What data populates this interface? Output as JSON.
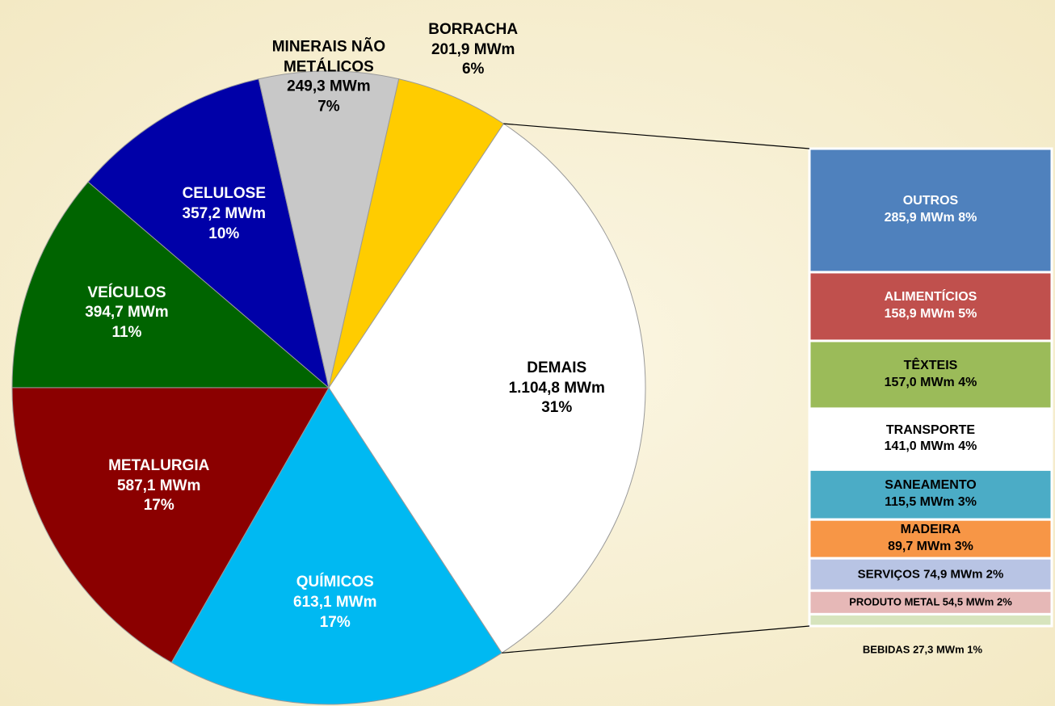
{
  "chart_data": {
    "type": "bar-of-pie",
    "pie": {
      "categories": [
        "DEMAIS",
        "QUÍMICOS",
        "METALURGIA",
        "VEÍCULOS",
        "CELULOSE",
        "MINERAIS NÃO METÁLICOS",
        "BORRACHA"
      ],
      "values": [
        1104.8,
        613.1,
        587.1,
        394.7,
        357.2,
        249.3,
        201.9
      ],
      "value_labels": [
        "1.104,8  MWm",
        "613,1  MWm",
        "587,1  MWm",
        "394,7  MWm",
        "357,2 MWm",
        "249,3 MWm",
        "201,9  MWm"
      ],
      "percents": [
        31,
        17,
        17,
        11,
        10,
        7,
        6
      ],
      "percent_labels": [
        "31%",
        "17%",
        "17%",
        "11%",
        "10%",
        "7%",
        "6%"
      ],
      "colors": [
        "#ffffff",
        "#00b9f2",
        "#8b0000",
        "#006400",
        "#0000a8",
        "#c8c8c8",
        "#ffcc00"
      ]
    },
    "bar": {
      "categories": [
        "OUTROS",
        "ALIMENTÍCIOS",
        "TÊXTEIS",
        "TRANSPORTE",
        "SANEAMENTO",
        "MADEIRA",
        "SERVIÇOS",
        "PRODUTO METAL",
        "BEBIDAS"
      ],
      "values": [
        285.9,
        158.9,
        157.0,
        141.0,
        115.5,
        89.7,
        74.9,
        54.5,
        27.3
      ],
      "value_labels": [
        "285,9 MWm",
        "158,9  MWm",
        "157,0 MWm",
        "141,0  MWm",
        "115,5  MWm",
        "89,7  MWm",
        "74,9  MWm",
        "54,5  MWm",
        "27,3  MWm"
      ],
      "percents": [
        8,
        5,
        4,
        4,
        3,
        3,
        2,
        2,
        1
      ],
      "percent_labels": [
        "8%",
        "5%",
        "4%",
        "4%",
        "3%",
        "3%",
        "2%",
        "2%",
        "1%"
      ],
      "colors": [
        "#4f81bd",
        "#c0504d",
        "#9bbb59",
        "#ffffff",
        "#4bacc6",
        "#f79646",
        "#b8c4e4",
        "#e6b8b7",
        "#d7e4bd"
      ]
    }
  }
}
